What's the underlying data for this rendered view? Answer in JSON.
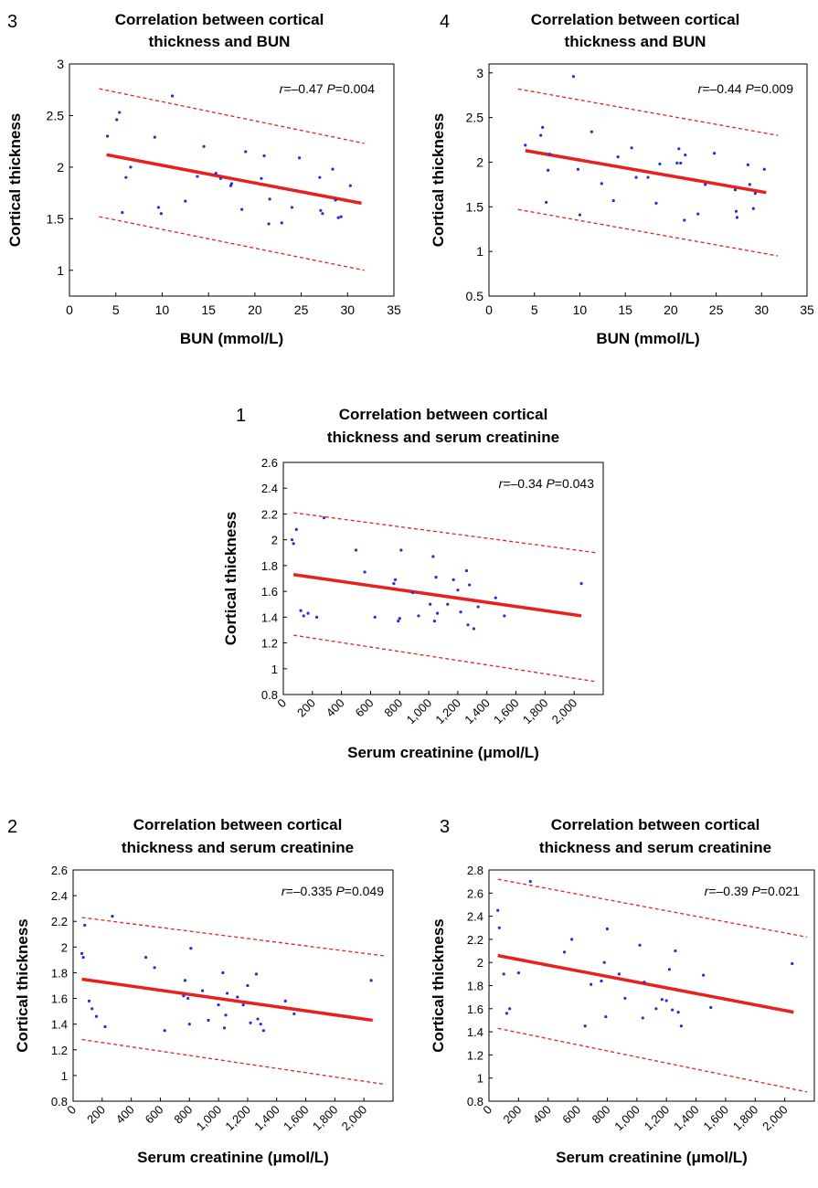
{
  "chart_data": [
    {
      "panel_label": "3",
      "type": "scatter",
      "title": [
        "Correlation between cortical",
        "thickness and BUN"
      ],
      "xlabel": "BUN (mmol/L)",
      "ylabel": "Cortical thickness",
      "xlim": [
        0,
        35
      ],
      "ylim": [
        0.75,
        3
      ],
      "xticks": [
        "0",
        "5",
        "10",
        "15",
        "20",
        "25",
        "30",
        "35"
      ],
      "xtick_values": [
        0,
        5,
        10,
        15,
        20,
        25,
        30,
        35
      ],
      "yticks": [
        "1",
        "1.5",
        "2",
        "2.5",
        "3"
      ],
      "ytick_values": [
        1,
        1.5,
        2,
        2.5,
        3
      ],
      "xtick_rotated": false,
      "annotation": {
        "r_label": "r",
        "r_value": "=–0.47",
        "p_label": "P",
        "p_value": "=0.004"
      },
      "fit_line": {
        "x": [
          4,
          31.5
        ],
        "y": [
          2.12,
          1.65
        ]
      },
      "ci_upper": {
        "x": [
          3.2,
          31.8
        ],
        "y": [
          2.76,
          2.23
        ]
      },
      "ci_lower": {
        "x": [
          3.2,
          31.8
        ],
        "y": [
          1.52,
          1.0
        ]
      },
      "points": {
        "x": [
          4.1,
          5.1,
          5.4,
          5.7,
          6.1,
          6.6,
          9.2,
          9.6,
          9.9,
          11.1,
          12.5,
          13.8,
          14.5,
          15.8,
          16.3,
          17.4,
          17.5,
          18.6,
          19.0,
          20.7,
          21.0,
          21.5,
          21.6,
          22.9,
          24.0,
          24.8,
          27.0,
          27.1,
          27.3,
          28.4,
          28.7,
          29.0,
          29.3,
          30.3
        ],
        "y": [
          2.3,
          2.46,
          2.53,
          1.56,
          1.9,
          2.0,
          2.29,
          1.61,
          1.55,
          2.69,
          1.67,
          1.91,
          2.2,
          1.94,
          1.89,
          1.82,
          1.84,
          1.59,
          2.15,
          1.89,
          2.11,
          1.45,
          1.69,
          1.46,
          1.61,
          2.09,
          1.9,
          1.58,
          1.55,
          1.98,
          1.68,
          1.51,
          1.52,
          1.82
        ]
      },
      "colors": {
        "points": "#2b2bd8",
        "line": "#e8201f"
      }
    },
    {
      "panel_label": "4",
      "type": "scatter",
      "title": [
        "Correlation between cortical",
        "thickness and BUN"
      ],
      "xlabel": "BUN (mmol/L)",
      "ylabel": "Cortical thickness",
      "xlim": [
        0,
        35
      ],
      "ylim": [
        0.5,
        3.1
      ],
      "xticks": [
        "0",
        "5",
        "10",
        "15",
        "20",
        "25",
        "30",
        "35"
      ],
      "xtick_values": [
        0,
        5,
        10,
        15,
        20,
        25,
        30,
        35
      ],
      "yticks": [
        "0.5",
        "1",
        "1.5",
        "2",
        "2.5",
        "3"
      ],
      "ytick_values": [
        0.5,
        1,
        1.5,
        2,
        2.5,
        3
      ],
      "xtick_rotated": false,
      "annotation": {
        "r_label": "r",
        "r_value": "=–0.44",
        "p_label": "P",
        "p_value": "=0.009"
      },
      "fit_line": {
        "x": [
          4,
          30.5
        ],
        "y": [
          2.13,
          1.66
        ]
      },
      "ci_upper": {
        "x": [
          3.2,
          31.8
        ],
        "y": [
          2.82,
          2.3
        ]
      },
      "ci_lower": {
        "x": [
          3.2,
          31.8
        ],
        "y": [
          1.47,
          0.95
        ]
      },
      "points": {
        "x": [
          4.0,
          5.7,
          5.9,
          6.3,
          6.5,
          6.7,
          9.3,
          9.8,
          10.0,
          11.3,
          12.4,
          13.7,
          14.2,
          15.7,
          16.2,
          17.5,
          18.4,
          18.8,
          20.7,
          20.9,
          21.1,
          21.5,
          21.6,
          23.0,
          23.8,
          24.8,
          27.1,
          27.2,
          27.3,
          28.5,
          28.7,
          29.1,
          29.3,
          30.3
        ],
        "y": [
          2.19,
          2.3,
          2.39,
          1.55,
          1.91,
          2.09,
          2.96,
          1.92,
          1.41,
          2.34,
          1.76,
          1.57,
          2.06,
          2.16,
          1.83,
          1.83,
          1.54,
          1.98,
          1.99,
          2.15,
          1.99,
          1.35,
          2.08,
          1.42,
          1.75,
          2.1,
          1.69,
          1.45,
          1.38,
          1.97,
          1.75,
          1.48,
          1.65,
          1.92
        ]
      },
      "colors": {
        "points": "#2b2bd8",
        "line": "#e8201f"
      }
    },
    {
      "panel_label": "1",
      "type": "scatter",
      "title": [
        "Correlation between cortical",
        "thickness and serum creatinine"
      ],
      "xlabel": "Serum creatinine (μmol/L)",
      "ylabel": "Cortical thickness",
      "xlim": [
        0,
        2200
      ],
      "ylim": [
        0.8,
        2.6
      ],
      "xticks": [
        "0",
        "200",
        "400",
        "600",
        "800",
        "1,000",
        "1,200",
        "1,400",
        "1,600",
        "1,800",
        "2,000"
      ],
      "xtick_values": [
        0,
        200,
        400,
        600,
        800,
        1000,
        1200,
        1400,
        1600,
        1800,
        2000
      ],
      "yticks": [
        "0.8",
        "1",
        "1.2",
        "1.4",
        "1.6",
        "1.8",
        "2",
        "2.2",
        "2.4",
        "2.6"
      ],
      "ytick_values": [
        0.8,
        1,
        1.2,
        1.4,
        1.6,
        1.8,
        2,
        2.2,
        2.4,
        2.6
      ],
      "xtick_rotated": true,
      "annotation": {
        "r_label": "r",
        "r_value": "=–0.34",
        "p_label": "P",
        "p_value": "=0.043"
      },
      "fit_line": {
        "x": [
          70,
          2050
        ],
        "y": [
          1.73,
          1.41
        ]
      },
      "ci_upper": {
        "x": [
          70,
          2150
        ],
        "y": [
          2.21,
          1.9
        ]
      },
      "ci_lower": {
        "x": [
          70,
          2150
        ],
        "y": [
          1.26,
          0.9
        ]
      },
      "points": {
        "x": [
          60,
          70,
          90,
          120,
          140,
          170,
          230,
          280,
          500,
          560,
          630,
          760,
          770,
          790,
          800,
          810,
          890,
          930,
          1010,
          1030,
          1040,
          1050,
          1060,
          1130,
          1170,
          1200,
          1220,
          1260,
          1270,
          1280,
          1310,
          1340,
          1460,
          1520,
          2050
        ],
        "y": [
          2.0,
          1.97,
          2.08,
          1.45,
          1.41,
          1.43,
          1.4,
          2.17,
          1.92,
          1.75,
          1.4,
          1.66,
          1.69,
          1.37,
          1.39,
          1.92,
          1.59,
          1.41,
          1.5,
          1.87,
          1.37,
          1.71,
          1.43,
          1.5,
          1.69,
          1.61,
          1.44,
          1.76,
          1.34,
          1.65,
          1.31,
          1.48,
          1.55,
          1.41,
          1.66
        ]
      },
      "colors": {
        "points": "#2b2bd8",
        "line": "#e8201f"
      }
    },
    {
      "panel_label": "2",
      "type": "scatter",
      "title": [
        "Correlation between cortical",
        "thickness and serum creatinine"
      ],
      "xlabel": "Serum creatinine (μmol/L)",
      "ylabel": "Cortical thickness",
      "xlim": [
        0,
        2200
      ],
      "ylim": [
        0.8,
        2.6
      ],
      "xticks": [
        "0",
        "200",
        "400",
        "600",
        "800",
        "1,000",
        "1,200",
        "1,400",
        "1,600",
        "1,800",
        "2,000"
      ],
      "xtick_values": [
        0,
        200,
        400,
        600,
        800,
        1000,
        1200,
        1400,
        1600,
        1800,
        2000
      ],
      "yticks": [
        "0.8",
        "1",
        "1.2",
        "1.4",
        "1.6",
        "1.8",
        "2",
        "2.2",
        "2.4",
        "2.6"
      ],
      "ytick_values": [
        0.8,
        1,
        1.2,
        1.4,
        1.6,
        1.8,
        2,
        2.2,
        2.4,
        2.6
      ],
      "xtick_rotated": true,
      "annotation": {
        "r_label": "r",
        "r_value": "=–0.335",
        "p_label": "P",
        "p_value": "=0.049"
      },
      "fit_line": {
        "x": [
          60,
          2060
        ],
        "y": [
          1.75,
          1.43
        ]
      },
      "ci_upper": {
        "x": [
          60,
          2150
        ],
        "y": [
          2.23,
          1.93
        ]
      },
      "ci_lower": {
        "x": [
          60,
          2150
        ],
        "y": [
          1.28,
          0.93
        ]
      },
      "points": {
        "x": [
          60,
          70,
          80,
          110,
          130,
          160,
          220,
          270,
          500,
          560,
          630,
          760,
          770,
          790,
          800,
          810,
          890,
          930,
          1000,
          1030,
          1040,
          1050,
          1060,
          1130,
          1170,
          1200,
          1220,
          1260,
          1270,
          1290,
          1310,
          1460,
          1520,
          2050
        ],
        "y": [
          1.95,
          1.92,
          2.17,
          1.58,
          1.52,
          1.46,
          1.38,
          2.24,
          1.92,
          1.84,
          1.35,
          1.62,
          1.74,
          1.6,
          1.4,
          1.99,
          1.66,
          1.43,
          1.55,
          1.8,
          1.37,
          1.47,
          1.64,
          1.61,
          1.55,
          1.7,
          1.41,
          1.79,
          1.44,
          1.4,
          1.35,
          1.58,
          1.48,
          1.74
        ]
      },
      "colors": {
        "points": "#2b2bd8",
        "line": "#e8201f"
      }
    },
    {
      "panel_label": "3",
      "type": "scatter",
      "title": [
        "Correlation between cortical",
        "thickness and serum creatinine"
      ],
      "xlabel": "Serum creatinine (μmol/L)",
      "ylabel": "Cortical thickness",
      "xlim": [
        0,
        2200
      ],
      "ylim": [
        0.8,
        2.8
      ],
      "xticks": [
        "0",
        "200",
        "400",
        "600",
        "800",
        "1,000",
        "1,200",
        "1,400",
        "1,600",
        "1,800",
        "2,000"
      ],
      "xtick_values": [
        0,
        200,
        400,
        600,
        800,
        1000,
        1200,
        1400,
        1600,
        1800,
        2000
      ],
      "yticks": [
        "0.8",
        "1",
        "1.2",
        "1.4",
        "1.6",
        "1.8",
        "2",
        "2.2",
        "2.4",
        "2.6",
        "2.8"
      ],
      "ytick_values": [
        0.8,
        1,
        1.2,
        1.4,
        1.6,
        1.8,
        2,
        2.2,
        2.4,
        2.6,
        2.8
      ],
      "xtick_rotated": true,
      "annotation": {
        "r_label": "r",
        "r_value": "=–0.39",
        "p_label": "P",
        "p_value": "=0.021"
      },
      "fit_line": {
        "x": [
          60,
          2060
        ],
        "y": [
          2.06,
          1.57
        ]
      },
      "ci_upper": {
        "x": [
          60,
          2150
        ],
        "y": [
          2.72,
          2.22
        ]
      },
      "ci_lower": {
        "x": [
          60,
          2150
        ],
        "y": [
          1.43,
          0.88
        ]
      },
      "points": {
        "x": [
          60,
          70,
          100,
          120,
          140,
          200,
          280,
          510,
          560,
          650,
          690,
          760,
          780,
          790,
          800,
          880,
          920,
          1020,
          1040,
          1050,
          1130,
          1170,
          1200,
          1220,
          1240,
          1260,
          1280,
          1300,
          1450,
          1500,
          2050
        ],
        "y": [
          2.45,
          2.3,
          1.9,
          1.56,
          1.6,
          1.91,
          2.7,
          2.09,
          2.2,
          1.45,
          1.81,
          1.84,
          2.0,
          1.53,
          2.29,
          1.9,
          1.69,
          2.15,
          1.52,
          1.83,
          1.6,
          1.68,
          1.67,
          1.94,
          1.59,
          2.1,
          1.57,
          1.45,
          1.89,
          1.61,
          1.99
        ]
      },
      "colors": {
        "points": "#2b2bd8",
        "line": "#e8201f"
      }
    }
  ]
}
